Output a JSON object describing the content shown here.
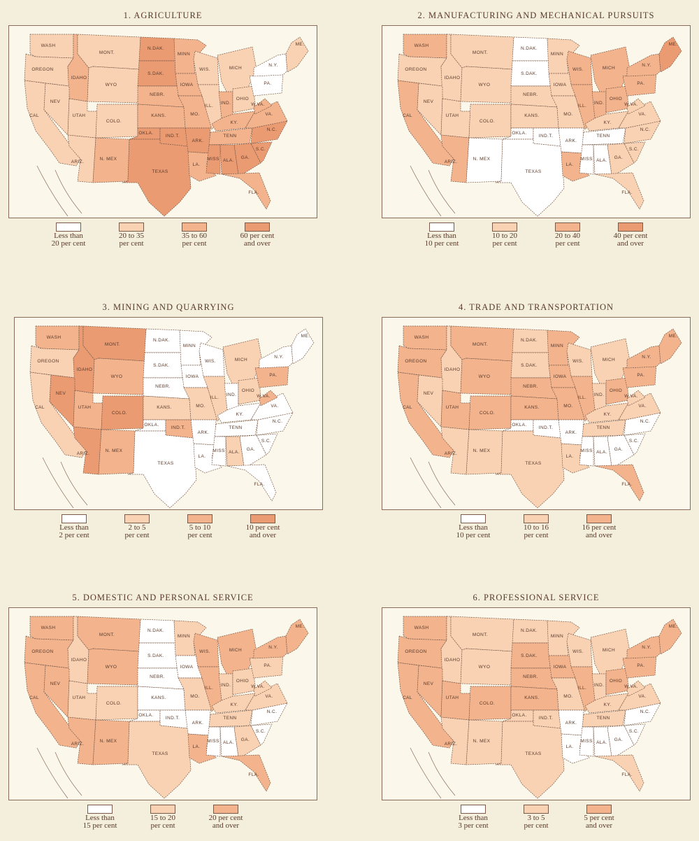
{
  "palette": [
    "#ffffff",
    "#f9d2b3",
    "#f2b38d",
    "#ea9b72"
  ],
  "state_labels": {
    "WA": "WASH",
    "OR": "OREGON",
    "CA": "CAL",
    "ID": "IDAHO",
    "NV": "NEV",
    "MT": "MONT.",
    "WY": "WYO",
    "UT": "UTAH",
    "AZ": "ARIZ.",
    "CO": "COLO.",
    "NM": "N. MEX",
    "ND": "N.DAK.",
    "SD": "S.DAK.",
    "NE": "NEBR.",
    "KS": "KANS.",
    "OK": "OKLA.",
    "IT": "IND.T.",
    "TX": "TEXAS",
    "MN": "MINN",
    "IA": "IOWA",
    "MO": "MO.",
    "AR": "ARK.",
    "LA": "LA.",
    "WI": "WIS.",
    "IL": "ILL.",
    "MI": "MICH",
    "IN": "IND.",
    "OH": "OHIO",
    "KY": "KY.",
    "TN": "TENN",
    "MS": "MISS",
    "AL": "ALA.",
    "GA": "GA.",
    "FL": "FLA.",
    "SC": "S.C.",
    "NC": "N.C.",
    "VA": "VA.",
    "WV": "W.VA.",
    "PA": "PA.",
    "NY": "N.Y.",
    "ME": "ME."
  },
  "maps": [
    {
      "title": "1. AGRICULTURE",
      "legend": [
        "Less than\n20 per cent",
        "20 to 35\nper cent",
        "35 to 60\nper cent",
        "60 per cent\nand over"
      ],
      "shades": {
        "WA": 1,
        "OR": 1,
        "CA": 1,
        "ID": 2,
        "NV": 1,
        "MT": 1,
        "WY": 1,
        "UT": 1,
        "AZ": 1,
        "CO": 1,
        "NM": 2,
        "ND": 3,
        "SD": 3,
        "NE": 2,
        "KS": 2,
        "OK": 3,
        "IT": 3,
        "TX": 3,
        "MN": 2,
        "IA": 2,
        "MO": 2,
        "AR": 3,
        "LA": 2,
        "WI": 1,
        "IL": 1,
        "MI": 1,
        "IN": 2,
        "OH": 1,
        "KY": 2,
        "TN": 2,
        "MS": 3,
        "AL": 3,
        "GA": 3,
        "FL": 2,
        "SC": 3,
        "NC": 3,
        "VA": 2,
        "WV": 2,
        "PA": 0,
        "NY": 0,
        "NE_REG": 1
      }
    },
    {
      "title": "2. MANUFACTURING AND MECHANICAL PURSUITS",
      "legend": [
        "Less than\n10 per cent",
        "10 to 20\nper cent",
        "20 to 40\nper cent",
        "40 per cent\nand over"
      ],
      "shades": {
        "WA": 2,
        "OR": 1,
        "CA": 2,
        "ID": 1,
        "NV": 1,
        "MT": 1,
        "WY": 1,
        "UT": 1,
        "AZ": 2,
        "CO": 1,
        "NM": 0,
        "ND": 0,
        "SD": 0,
        "NE": 1,
        "KS": 1,
        "OK": 0,
        "IT": 0,
        "TX": 0,
        "MN": 1,
        "IA": 1,
        "MO": 1,
        "AR": 0,
        "LA": 2,
        "WI": 2,
        "IL": 2,
        "MI": 2,
        "IN": 2,
        "OH": 2,
        "KY": 1,
        "TN": 0,
        "MS": 0,
        "AL": 0,
        "GA": 1,
        "FL": 1,
        "SC": 1,
        "NC": 1,
        "VA": 1,
        "WV": 1,
        "PA": 2,
        "NY": 2,
        "NE_REG": 3
      }
    },
    {
      "title": "3. MINING AND QUARRYING",
      "legend": [
        "Less than\n2 per cent",
        "2 to 5\nper cent",
        "5 to 10\nper cent",
        "10 per cent\nand over"
      ],
      "shades": {
        "WA": 2,
        "OR": 1,
        "CA": 1,
        "ID": 3,
        "NV": 3,
        "MT": 3,
        "WY": 2,
        "UT": 2,
        "AZ": 3,
        "CO": 3,
        "NM": 2,
        "ND": 0,
        "SD": 0,
        "NE": 0,
        "KS": 1,
        "OK": 0,
        "IT": 2,
        "TX": 0,
        "MN": 0,
        "IA": 0,
        "MO": 1,
        "AR": 0,
        "LA": 0,
        "WI": 0,
        "IL": 1,
        "MI": 1,
        "IN": 0,
        "OH": 1,
        "KY": 0,
        "TN": 0,
        "MS": 0,
        "AL": 1,
        "GA": 0,
        "FL": 0,
        "SC": 0,
        "NC": 0,
        "VA": 0,
        "WV": 2,
        "PA": 2,
        "NY": 0,
        "NE_REG": 0
      }
    },
    {
      "title": "4. TRADE AND TRANSPORTATION",
      "legend": [
        "Less than\n10 per cent",
        "10 to 16\nper cent",
        "16 per cent\nand over"
      ],
      "shades": {
        "WA": 2,
        "OR": 2,
        "CA": 2,
        "ID": 1,
        "NV": 1,
        "MT": 2,
        "WY": 2,
        "UT": 2,
        "AZ": 1,
        "CO": 2,
        "NM": 1,
        "ND": 1,
        "SD": 1,
        "NE": 2,
        "KS": 2,
        "OK": 0,
        "IT": 0,
        "TX": 1,
        "MN": 2,
        "IA": 2,
        "MO": 2,
        "AR": 0,
        "LA": 1,
        "WI": 1,
        "IL": 2,
        "MI": 1,
        "IN": 1,
        "OH": 2,
        "KY": 1,
        "TN": 1,
        "MS": 0,
        "AL": 0,
        "GA": 0,
        "FL": 2,
        "SC": 0,
        "NC": 0,
        "VA": 1,
        "WV": 1,
        "PA": 2,
        "NY": 2,
        "NE_REG": 2
      }
    },
    {
      "title": "5. DOMESTIC AND PERSONAL SERVICE",
      "legend": [
        "Less than\n15 per cent",
        "15 to 20\nper cent",
        "20 per cent\nand over"
      ],
      "shades": {
        "WA": 2,
        "OR": 2,
        "CA": 2,
        "ID": 1,
        "NV": 2,
        "MT": 2,
        "WY": 2,
        "UT": 1,
        "AZ": 2,
        "CO": 1,
        "NM": 2,
        "ND": 0,
        "SD": 0,
        "NE": 0,
        "KS": 0,
        "OK": 0,
        "IT": 0,
        "TX": 1,
        "MN": 1,
        "IA": 0,
        "MO": 1,
        "AR": 0,
        "LA": 2,
        "WI": 2,
        "IL": 2,
        "MI": 2,
        "IN": 1,
        "OH": 1,
        "KY": 1,
        "TN": 1,
        "MS": 0,
        "AL": 0,
        "GA": 1,
        "FL": 2,
        "SC": 0,
        "NC": 0,
        "VA": 1,
        "WV": 1,
        "PA": 1,
        "NY": 2,
        "NE_REG": 2
      }
    },
    {
      "title": "6. PROFESSIONAL SERVICE",
      "legend": [
        "Less than\n3 per cent",
        "3 to 5\nper cent",
        "5 per cent\nand over"
      ],
      "shades": {
        "WA": 2,
        "OR": 2,
        "CA": 2,
        "ID": 1,
        "NV": 2,
        "MT": 1,
        "WY": 1,
        "UT": 2,
        "AZ": 1,
        "CO": 2,
        "NM": 1,
        "ND": 1,
        "SD": 2,
        "NE": 2,
        "KS": 2,
        "OK": 1,
        "IT": 1,
        "TX": 1,
        "MN": 1,
        "IA": 2,
        "MO": 1,
        "AR": 0,
        "LA": 0,
        "WI": 1,
        "IL": 2,
        "MI": 1,
        "IN": 1,
        "OH": 2,
        "KY": 1,
        "TN": 1,
        "MS": 0,
        "AL": 0,
        "GA": 0,
        "FL": 1,
        "SC": 0,
        "NC": 0,
        "VA": 1,
        "WV": 1,
        "PA": 2,
        "NY": 2,
        "NE_REG": 2
      }
    }
  ]
}
